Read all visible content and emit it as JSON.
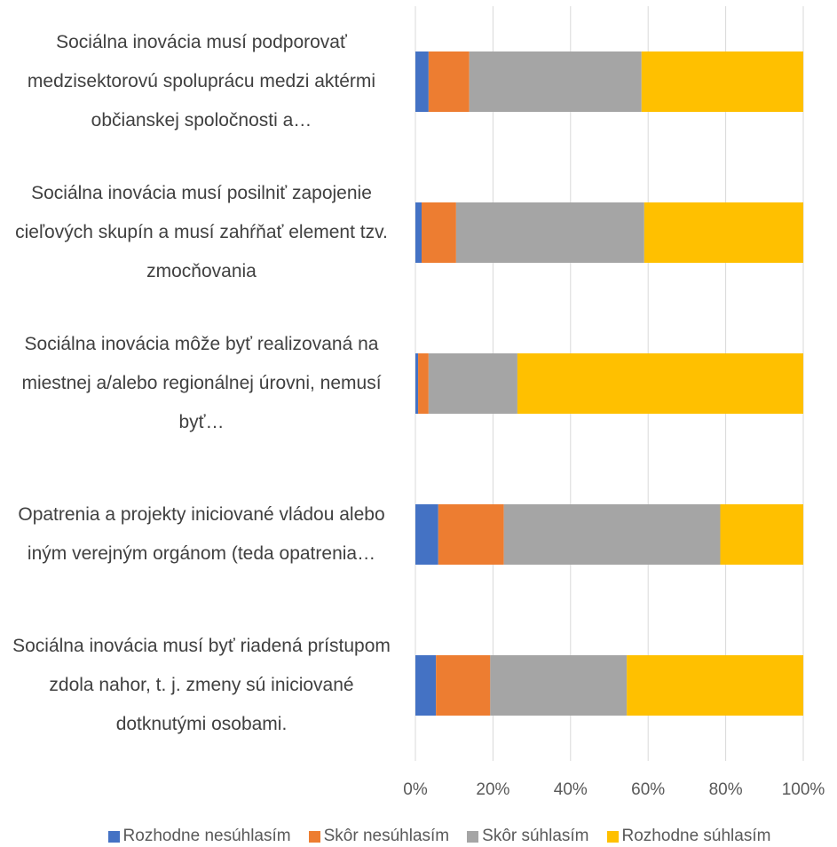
{
  "chart_data": {
    "type": "stacked_barh",
    "categories": [
      "Sociálna inovácia musí podporovať medzisektorovú spoluprácu medzi aktérmi občianskej spoločnosti a…",
      "Sociálna inovácia musí posilniť zapojenie cieľových skupín a musí zahŕňať element tzv. zmocňovania",
      "Sociálna inovácia môže byť realizovaná na miestnej a/alebo regionálnej úrovni, nemusí byť…",
      "Opatrenia a projekty iniciované vládou alebo iným verejným orgánom (teda opatrenia…",
      "Sociálna inovácia musí byť riadená prístupom zdola nahor, t. j. zmeny sú iniciované dotknutými osobami."
    ],
    "series": [
      {
        "name": "Rozhodne nesúhlasím",
        "color": "#4472c4",
        "values": [
          3.4,
          1.6,
          0.7,
          5.9,
          5.3
        ]
      },
      {
        "name": "Skôr nesúhlasím",
        "color": "#ed7d31",
        "values": [
          10.5,
          8.9,
          2.7,
          16.9,
          14.0
        ]
      },
      {
        "name": "Skôr súhlasím",
        "color": "#a5a5a5",
        "values": [
          44.4,
          48.5,
          22.9,
          55.8,
          35.2
        ]
      },
      {
        "name": "Rozhodne súhlasím",
        "color": "#ffc000",
        "values": [
          41.7,
          41.0,
          73.7,
          21.4,
          45.5
        ]
      }
    ],
    "xlim": [
      0,
      100
    ],
    "xticks": [
      {
        "value": 0,
        "label": "0%"
      },
      {
        "value": 20,
        "label": "20%"
      },
      {
        "value": 40,
        "label": "40%"
      },
      {
        "value": 60,
        "label": "60%"
      },
      {
        "value": 80,
        "label": "80%"
      },
      {
        "value": 100,
        "label": "100%"
      }
    ],
    "grid": true,
    "legend": "bottom"
  }
}
